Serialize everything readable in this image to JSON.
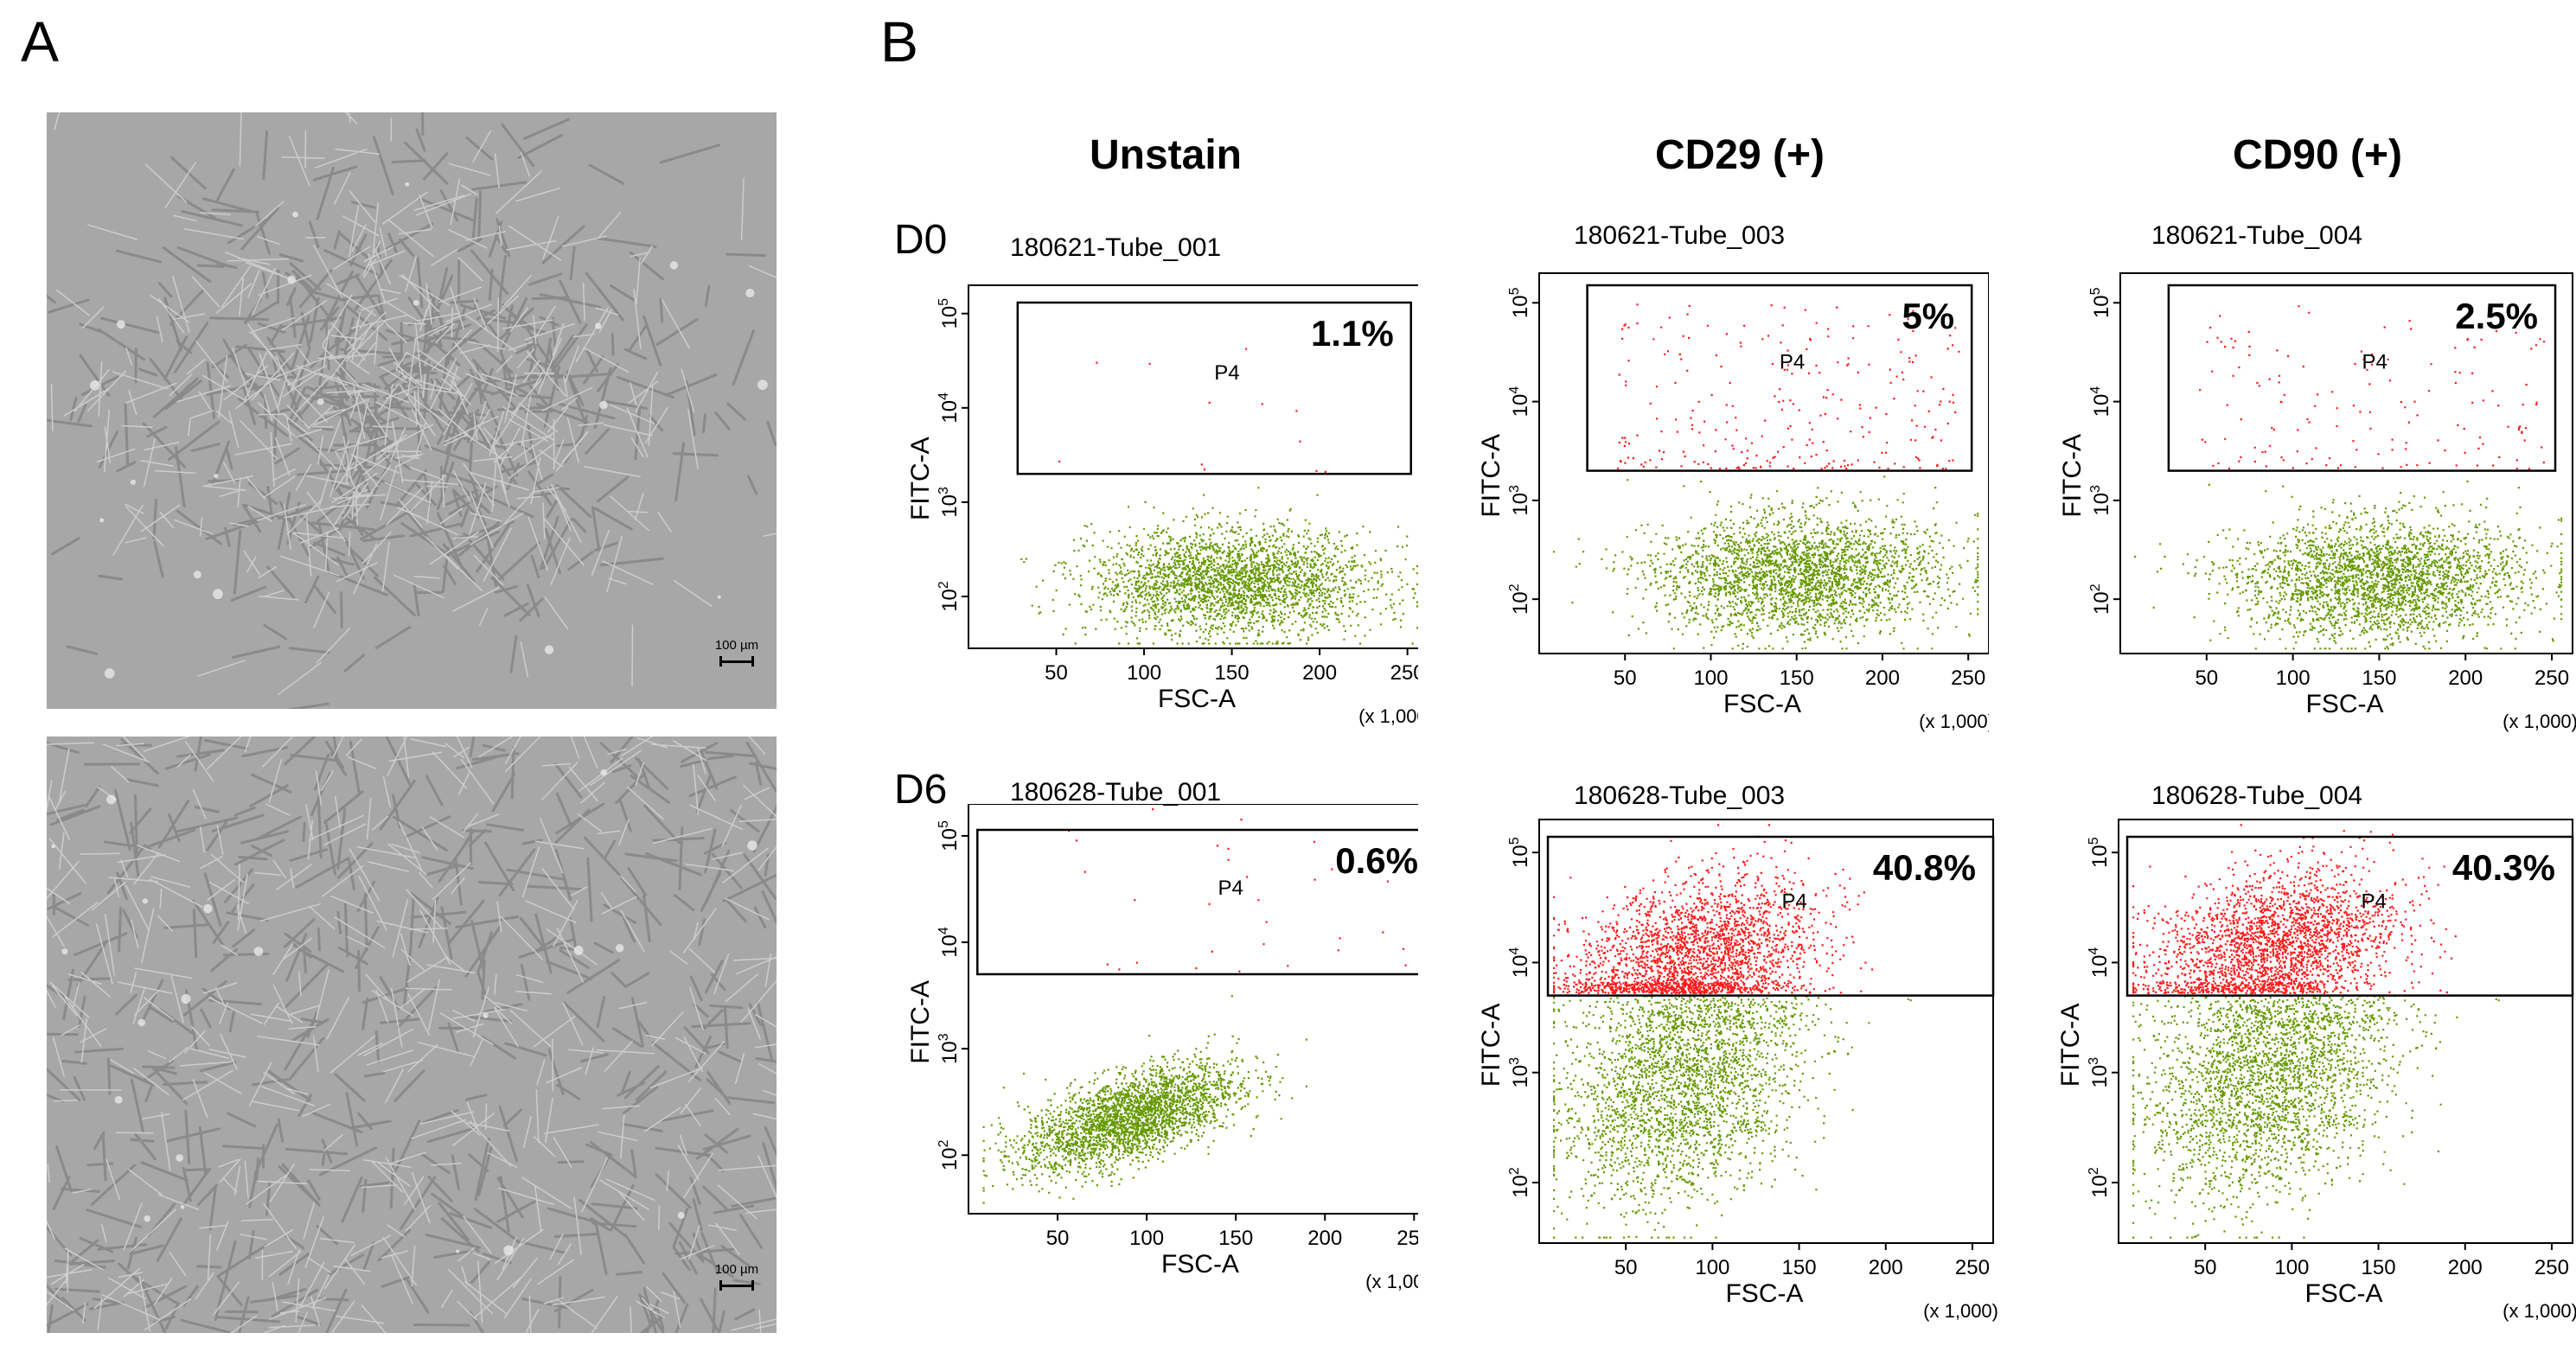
{
  "panels": {
    "a_label": "A",
    "b_label": "B"
  },
  "micrographs": [
    {
      "scale_label": "100 µm"
    },
    {
      "scale_label": "100 µm"
    }
  ],
  "columns": [
    "Unstain",
    "CD29 (+)",
    "CD90 (+)"
  ],
  "rows": [
    "D0",
    "D6"
  ],
  "plots": [
    {
      "tube": "180621-Tube_001",
      "percent": "1.1%",
      "gate": "P4"
    },
    {
      "tube": "180621-Tube_003",
      "percent": "5%",
      "gate": "P4"
    },
    {
      "tube": "180621-Tube_004",
      "percent": "2.5%",
      "gate": "P4"
    },
    {
      "tube": "180628-Tube_001",
      "percent": "0.6%",
      "gate": "P4"
    },
    {
      "tube": "180628-Tube_003",
      "percent": "40.8%",
      "gate": "P4"
    },
    {
      "tube": "180628-Tube_004",
      "percent": "40.3%",
      "gate": "P4"
    }
  ],
  "axes": {
    "x_label": "FSC-A",
    "y_label": "FITC-A",
    "x_multiplier": "(x 1,000)",
    "x_ticks": [
      "50",
      "100",
      "150",
      "200",
      "250"
    ],
    "y_tick_base": "10",
    "y_tick_exponents": [
      "2",
      "3",
      "4",
      "5"
    ]
  },
  "colors": {
    "positive": "#ff1a1a",
    "negative": "#669900",
    "micro_bg": "#a7a7a7"
  }
}
